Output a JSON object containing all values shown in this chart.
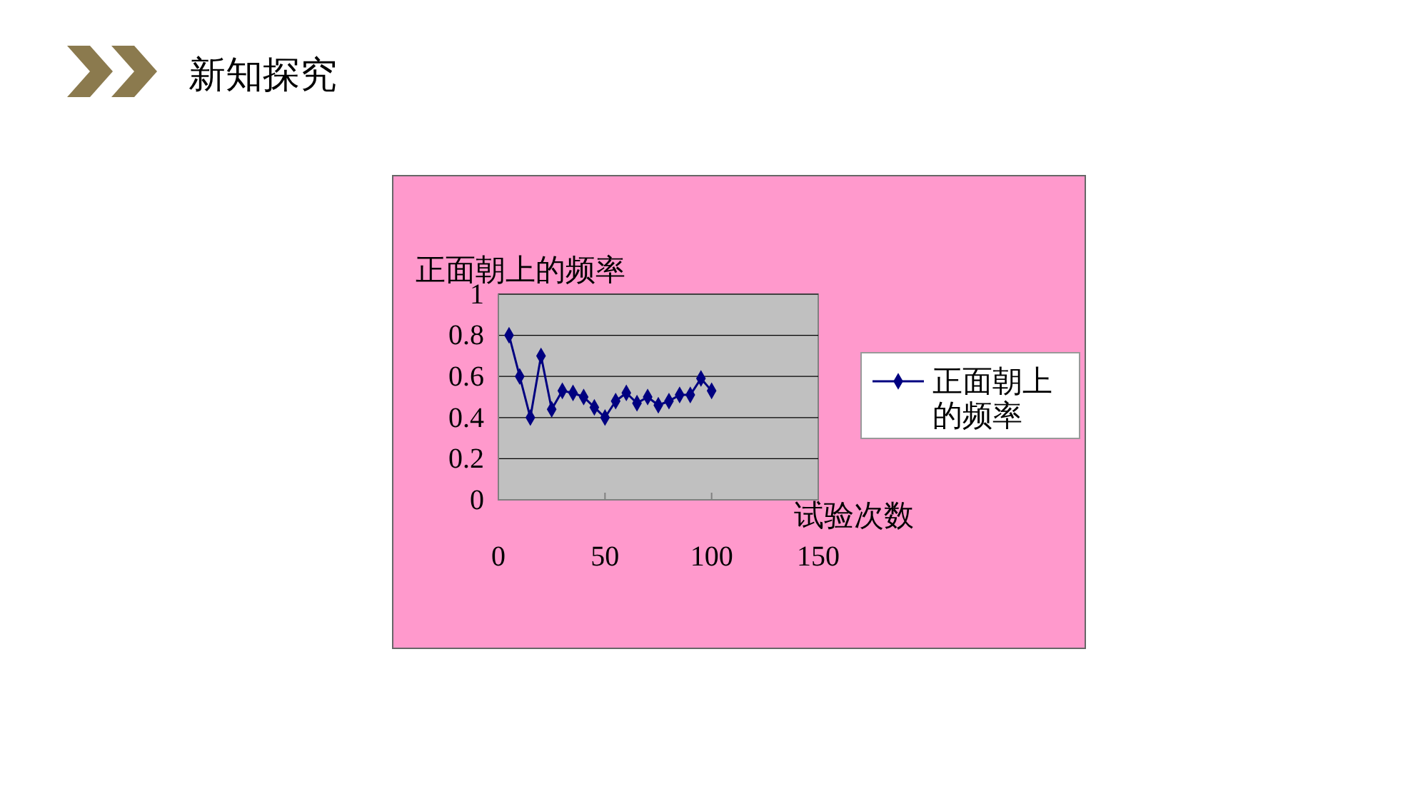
{
  "chart_data": {
    "type": "line",
    "title": "新知探究",
    "xlabel": "试验次数",
    "ylabel": "正面朝上的频率",
    "x": [
      5,
      10,
      15,
      20,
      25,
      30,
      35,
      40,
      45,
      50,
      55,
      60,
      65,
      70,
      75,
      80,
      85,
      90,
      95,
      100
    ],
    "series": [
      {
        "name": "正面朝上的频率",
        "color": "#000080",
        "values": [
          0.8,
          0.6,
          0.4,
          0.7,
          0.44,
          0.53,
          0.52,
          0.5,
          0.45,
          0.4,
          0.48,
          0.52,
          0.47,
          0.5,
          0.46,
          0.48,
          0.51,
          0.51,
          0.59,
          0.53
        ]
      }
    ],
    "xlim": [
      0,
      150
    ],
    "xticks": [
      0,
      50,
      100,
      150
    ],
    "ylim": [
      0,
      1
    ],
    "yticks": [
      0,
      0.2,
      0.4,
      0.6,
      0.8,
      1
    ],
    "grid": "y",
    "legend": "right",
    "marker": "diamond",
    "line_style": "solid"
  }
}
